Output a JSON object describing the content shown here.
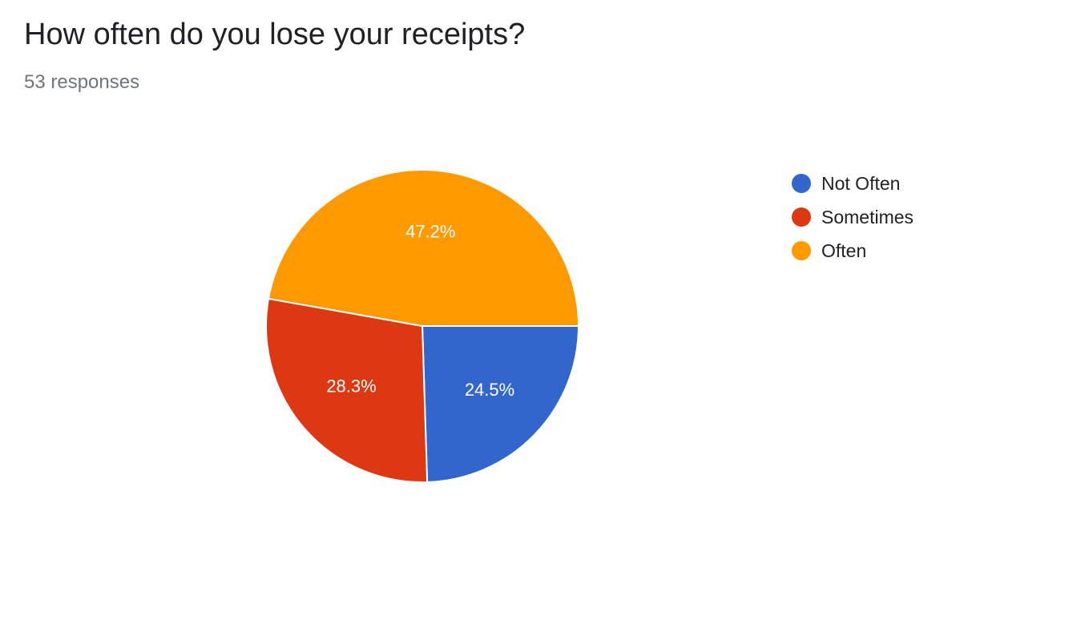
{
  "header": {
    "title": "How often do you lose your receipts?",
    "subtitle": "53 responses"
  },
  "chart_data": {
    "type": "pie",
    "title": "How often do you lose your receipts?",
    "subtitle": "53 responses",
    "legend_position": "right",
    "categories": [
      "Not Often",
      "Sometimes",
      "Often"
    ],
    "values": [
      24.5,
      28.3,
      47.2
    ],
    "labels": [
      "24.5%",
      "28.3%",
      "47.2%"
    ],
    "colors": [
      "#3366cc",
      "#dc3912",
      "#ff9900"
    ]
  }
}
